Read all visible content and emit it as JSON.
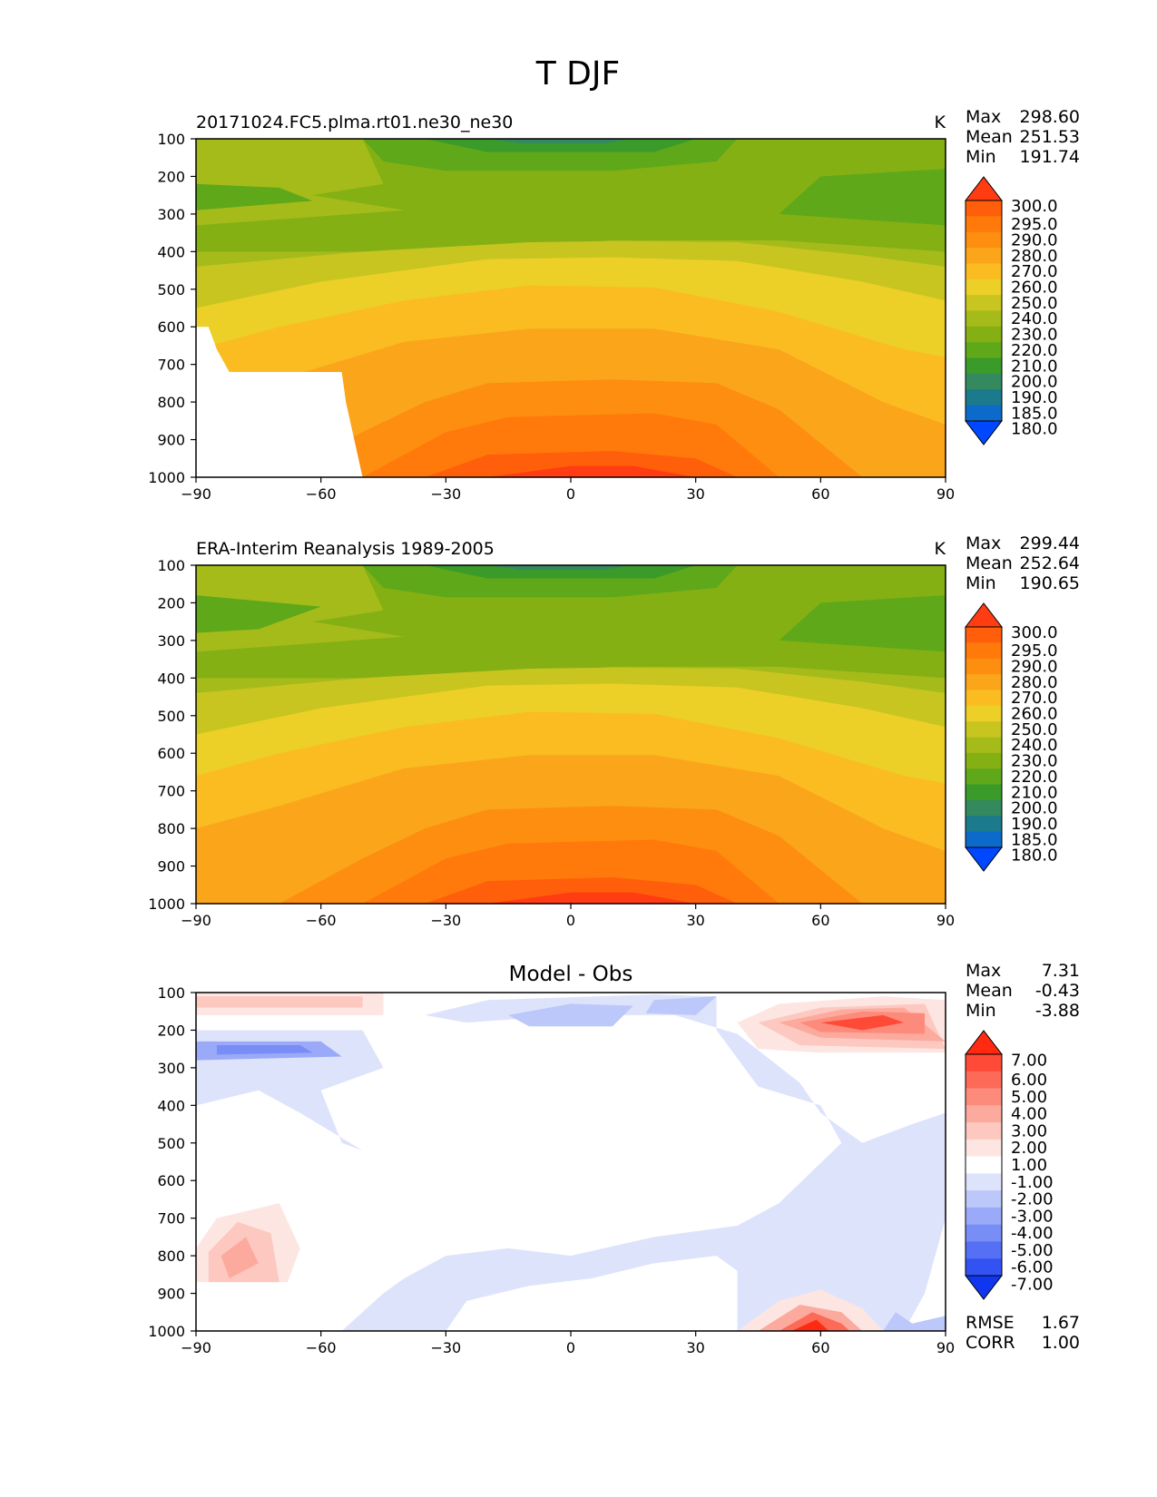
{
  "figure": {
    "title": "T DJF"
  },
  "chart_data": [
    {
      "type": "heatmap",
      "panel": "test",
      "title_left": "20171024.FC5.plma.rt01.ne30_ne30",
      "title_center": "",
      "units": "K",
      "stats": {
        "Max": "298.60",
        "Mean": "251.53",
        "Min": "191.74"
      },
      "x_ticks": [
        "−90",
        "−60",
        "−30",
        "0",
        "30",
        "60",
        "90"
      ],
      "y_ticks": [
        "100",
        "200",
        "300",
        "400",
        "500",
        "600",
        "700",
        "800",
        "900",
        "1000"
      ],
      "xlim": [
        -90,
        90
      ],
      "ylim": [
        1000,
        100
      ],
      "y_inverted": true,
      "colorbar_levels": [
        "300.0",
        "295.0",
        "290.0",
        "280.0",
        "270.0",
        "260.0",
        "250.0",
        "240.0",
        "230.0",
        "220.0",
        "210.0",
        "200.0",
        "190.0",
        "185.0",
        "180.0"
      ],
      "colorbar_colors": [
        "#ff3c12",
        "#ff5f0a",
        "#ff7a0a",
        "#fd8e10",
        "#fba51a",
        "#fbbc22",
        "#ecd027",
        "#c8c520",
        "#a5bb1a",
        "#84b014",
        "#5ea81a",
        "#3a9a2a",
        "#348a5e",
        "#1b7a8c",
        "#0c6acb",
        "#0048ff"
      ],
      "field_profile_by_level": {
        "pressure_hPa": [
          100,
          200,
          300,
          400,
          500,
          600,
          700,
          800,
          900,
          1000
        ],
        "equator_K": [
          195,
          207,
          228,
          245,
          258,
          268,
          276,
          284,
          290,
          296
        ],
        "high_latitude_K": [
          212,
          216,
          218,
          228,
          238,
          246,
          252,
          256,
          258,
          260
        ]
      },
      "masked_region": "surface below ~650-870 hPa poleward of 50S (Antarctica)"
    },
    {
      "type": "heatmap",
      "panel": "reference",
      "title_left": "ERA-Interim Reanalysis 1989-2005",
      "title_center": "",
      "units": "K",
      "stats": {
        "Max": "299.44",
        "Mean": "252.64",
        "Min": "190.65"
      },
      "x_ticks": [
        "−90",
        "−60",
        "−30",
        "0",
        "30",
        "60",
        "90"
      ],
      "y_ticks": [
        "100",
        "200",
        "300",
        "400",
        "500",
        "600",
        "700",
        "800",
        "900",
        "1000"
      ],
      "xlim": [
        -90,
        90
      ],
      "ylim": [
        1000,
        100
      ],
      "y_inverted": true,
      "colorbar_levels": [
        "300.0",
        "295.0",
        "290.0",
        "280.0",
        "270.0",
        "260.0",
        "250.0",
        "240.0",
        "230.0",
        "220.0",
        "210.0",
        "200.0",
        "190.0",
        "185.0",
        "180.0"
      ],
      "colorbar_colors": [
        "#ff3c12",
        "#ff5f0a",
        "#ff7a0a",
        "#fd8e10",
        "#fba51a",
        "#fbbc22",
        "#ecd027",
        "#c8c520",
        "#a5bb1a",
        "#84b014",
        "#5ea81a",
        "#3a9a2a",
        "#348a5e",
        "#1b7a8c",
        "#0c6acb",
        "#0048ff"
      ],
      "field_profile_by_level": {
        "pressure_hPa": [
          100,
          200,
          300,
          400,
          500,
          600,
          700,
          800,
          900,
          1000
        ],
        "equator_K": [
          195,
          208,
          228,
          245,
          258,
          268,
          277,
          285,
          291,
          297
        ],
        "high_latitude_K": [
          212,
          216,
          218,
          228,
          238,
          246,
          252,
          256,
          258,
          262
        ]
      }
    },
    {
      "type": "heatmap",
      "panel": "difference",
      "title_left": "",
      "title_center": "Model - Obs",
      "units": "",
      "stats": {
        "Max": "7.31",
        "Mean": "-0.43",
        "Min": "-3.88"
      },
      "metrics": {
        "RMSE": "1.67",
        "CORR": "1.00"
      },
      "x_ticks": [
        "−90",
        "−60",
        "−30",
        "0",
        "30",
        "60",
        "90"
      ],
      "y_ticks": [
        "100",
        "200",
        "300",
        "400",
        "500",
        "600",
        "700",
        "800",
        "900",
        "1000"
      ],
      "xlim": [
        -90,
        90
      ],
      "ylim": [
        1000,
        100
      ],
      "y_inverted": true,
      "colorbar_levels": [
        "7.00",
        "6.00",
        "5.00",
        "4.00",
        "3.00",
        "2.00",
        "1.00",
        "-1.00",
        "-2.00",
        "-3.00",
        "-4.00",
        "-5.00",
        "-6.00",
        "-7.00"
      ],
      "colorbar_colors": [
        "#ff2a10",
        "#fe4a36",
        "#fd6a58",
        "#fd8b7c",
        "#fdaa9e",
        "#fdc8c0",
        "#fde6e2",
        "#ffffff",
        "#dde3fb",
        "#bcc7fa",
        "#9aaaf8",
        "#788df6",
        "#5570f4",
        "#3253f2",
        "#1036f0"
      ],
      "features": [
        {
          "name": "warm upper-level NH jet",
          "lat_range": [
            40,
            90
          ],
          "p_range_hPa": [
            100,
            300
          ],
          "peak_K": 5
        },
        {
          "name": "warm upper-level SH",
          "lat_range": [
            -90,
            -45
          ],
          "p_range_hPa": [
            100,
            200
          ],
          "peak_K": 2
        },
        {
          "name": "cold SH upper troposphere",
          "lat_range": [
            -90,
            -50
          ],
          "p_range_hPa": [
            200,
            350
          ],
          "peak_K": -3
        },
        {
          "name": "cold tropical upper troposphere",
          "lat_range": [
            -30,
            40
          ],
          "p_range_hPa": [
            100,
            500
          ],
          "peak_K": -2
        },
        {
          "name": "warm near-surface 50N",
          "lat_range": [
            40,
            60
          ],
          "p_range_hPa": [
            850,
            1000
          ],
          "peak_K": 7
        },
        {
          "name": "warm lower SH polar",
          "lat_range": [
            -90,
            -70
          ],
          "p_range_hPa": [
            650,
            870
          ],
          "peak_K": 3
        }
      ]
    }
  ]
}
